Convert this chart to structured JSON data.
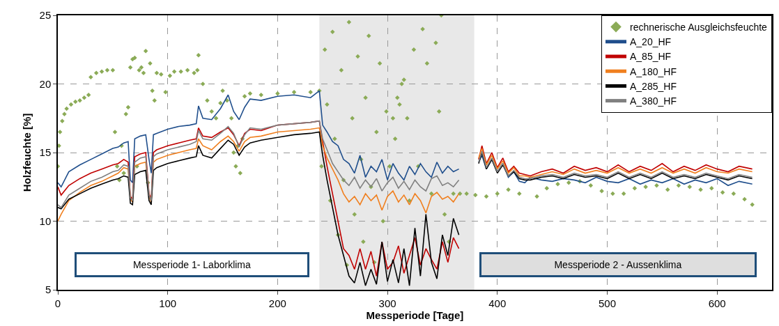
{
  "chart_data": {
    "type": "line",
    "xlabel": "Messperiode [Tage]",
    "ylabel": "Holzfeuchte [%]",
    "xlim": [
      0,
      650
    ],
    "xticks": [
      0,
      100,
      200,
      300,
      400,
      500,
      600
    ],
    "ylim": [
      5,
      25
    ],
    "yticks": [
      5,
      10,
      15,
      20,
      25
    ],
    "grid": true,
    "legend": "top right",
    "line_style": "solid",
    "x": [
      0,
      3,
      10,
      20,
      30,
      40,
      50,
      55,
      60,
      64,
      66,
      68,
      70,
      75,
      80,
      83,
      85,
      87,
      90,
      100,
      110,
      120,
      126,
      128,
      132,
      140,
      148,
      155,
      160,
      165,
      170,
      175,
      185,
      200,
      215,
      230,
      238,
      241,
      245,
      250,
      255,
      260,
      265,
      270,
      275,
      280,
      285,
      290,
      295,
      300,
      305,
      310,
      315,
      320,
      325,
      330,
      335,
      340,
      345,
      350,
      355,
      360,
      365,
      374,
      383,
      386,
      390,
      395,
      400,
      405,
      410,
      415,
      420,
      425,
      430,
      440,
      450,
      460,
      470,
      480,
      490,
      500,
      510,
      520,
      530,
      540,
      550,
      560,
      570,
      580,
      590,
      600,
      610,
      620,
      632
    ],
    "series": [
      {
        "name": "rechnerische Ausgleichsfeuchte",
        "type": "scatter",
        "marker": "diamond",
        "color": "#8bab57",
        "x": [
          0,
          1,
          2,
          4,
          6,
          8,
          12,
          16,
          20,
          24,
          28,
          30,
          35,
          40,
          45,
          50,
          52,
          54,
          56,
          58,
          60,
          62,
          64,
          66,
          68,
          70,
          72,
          74,
          76,
          78,
          80,
          82,
          84,
          86,
          88,
          90,
          94,
          98,
          102,
          106,
          112,
          118,
          124,
          127,
          128,
          132,
          136,
          140,
          144,
          148,
          150,
          154,
          158,
          160,
          162,
          164,
          166,
          168,
          170,
          175,
          185,
          200,
          215,
          230,
          238,
          240,
          243,
          245,
          248,
          250,
          252,
          255,
          258,
          260,
          263,
          265,
          268,
          270,
          273,
          276,
          278,
          280,
          283,
          285,
          288,
          290,
          293,
          296,
          299,
          302,
          305,
          307,
          309,
          311,
          313,
          315,
          318,
          320,
          324,
          328,
          332,
          336,
          340,
          344,
          347,
          349,
          352,
          356,
          360,
          366,
          372,
          380,
          390,
          400,
          410,
          420,
          436,
          445,
          455,
          465,
          475,
          485,
          495,
          505,
          515,
          525,
          535,
          545,
          555,
          565,
          575,
          585,
          595,
          605,
          615,
          625,
          632
        ],
        "values": [
          14.0,
          15.5,
          16.5,
          17.3,
          17.8,
          18.2,
          18.5,
          18.7,
          18.8,
          19.0,
          19.2,
          20.5,
          20.8,
          20.9,
          21.0,
          21.0,
          16.5,
          14.0,
          13.0,
          15.5,
          13.5,
          17.8,
          18.3,
          21.2,
          21.8,
          21.9,
          14.0,
          21.0,
          21.2,
          20.8,
          22.4,
          12.8,
          21.5,
          19.5,
          18.8,
          20.8,
          20.7,
          19.4,
          20.6,
          20.9,
          20.9,
          21.0,
          20.8,
          21.0,
          22.1,
          20.0,
          18.8,
          18.0,
          17.5,
          18.6,
          19.5,
          18.8,
          17.5,
          15.0,
          14.0,
          15.5,
          13.5,
          16.0,
          19.1,
          19.3,
          19.2,
          19.3,
          19.4,
          19.4,
          19.5,
          14.0,
          22.5,
          18.5,
          11.5,
          23.8,
          16.0,
          9.0,
          21.0,
          13.0,
          6.8,
          24.5,
          17.5,
          10.5,
          22.0,
          14.5,
          8.5,
          19.0,
          23.5,
          12.5,
          7.0,
          16.5,
          21.5,
          10.0,
          18.0,
          14.0,
          17.5,
          16.0,
          19.0,
          18.5,
          20.0,
          20.3,
          17.5,
          11.5,
          22.5,
          14.0,
          24.0,
          21.5,
          12.0,
          23.0,
          18.0,
          25.0,
          10.5,
          8.5,
          12.0,
          12.0,
          12.0,
          11.9,
          11.8,
          12.0,
          12.3,
          12.0,
          11.8,
          12.4,
          12.7,
          12.8,
          12.9,
          12.6,
          12.2,
          12.0,
          12.0,
          12.4,
          12.5,
          12.6,
          12.3,
          12.6,
          12.5,
          12.3,
          12.4,
          12.1,
          12.0,
          11.6,
          11.2
        ]
      },
      {
        "name": "A_20_HF",
        "color": "#1f4e8c",
        "values": [
          12.8,
          12.5,
          13.6,
          14.1,
          14.5,
          14.9,
          15.3,
          15.4,
          15.7,
          15.8,
          13.0,
          12.8,
          16.0,
          16.2,
          16.3,
          14.5,
          13.5,
          16.3,
          16.4,
          16.7,
          16.9,
          17.0,
          17.1,
          18.4,
          17.5,
          17.4,
          18.2,
          19.2,
          18.0,
          17.4,
          18.3,
          18.9,
          18.8,
          19.1,
          19.2,
          19.0,
          19.5,
          17.0,
          16.5,
          15.8,
          15.5,
          14.5,
          14.2,
          13.5,
          14.8,
          13.2,
          14.0,
          13.6,
          14.5,
          13.0,
          14.2,
          13.5,
          13.0,
          14.0,
          13.4,
          14.2,
          13.6,
          13.2,
          14.3,
          13.5,
          14.0,
          13.6,
          13.8,
          null,
          14.3,
          14.8,
          13.8,
          14.5,
          13.6,
          14.2,
          13.2,
          13.6,
          12.9,
          12.8,
          13.2,
          13.0,
          12.9,
          13.1,
          13.0,
          12.8,
          13.2,
          12.9,
          12.8,
          13.1,
          12.7,
          13.0,
          12.8,
          13.1,
          12.7,
          13.0,
          12.8,
          13.1,
          12.6,
          12.9,
          12.7
        ]
      },
      {
        "name": "A_85_HF",
        "color": "#c00000",
        "values": [
          12.5,
          11.9,
          12.6,
          13.1,
          13.5,
          13.8,
          14.1,
          14.2,
          14.5,
          14.3,
          11.8,
          11.6,
          14.7,
          14.9,
          15.0,
          12.0,
          11.6,
          15.0,
          15.2,
          15.5,
          15.7,
          15.9,
          16.0,
          16.8,
          16.2,
          16.1,
          16.5,
          16.8,
          16.3,
          15.5,
          16.4,
          16.7,
          16.6,
          17.0,
          17.1,
          17.2,
          17.3,
          15.8,
          14.0,
          12.0,
          10.0,
          8.0,
          7.5,
          6.5,
          8.0,
          6.5,
          7.8,
          6.0,
          8.5,
          6.5,
          7.0,
          8.2,
          6.2,
          7.5,
          8.8,
          6.8,
          8.0,
          7.2,
          6.5,
          8.5,
          7.0,
          8.8,
          8.0,
          null,
          14.5,
          15.5,
          14.2,
          15.0,
          13.9,
          14.6,
          13.6,
          14.0,
          13.5,
          13.4,
          13.3,
          13.6,
          13.8,
          13.5,
          14.0,
          13.7,
          13.9,
          13.6,
          14.1,
          13.6,
          14.0,
          13.7,
          14.2,
          13.6,
          14.0,
          13.7,
          14.1,
          13.8,
          13.6,
          14.0,
          13.8
        ]
      },
      {
        "name": "A_180_HF",
        "color": "#f07f1e",
        "values": [
          10.0,
          10.5,
          11.5,
          12.1,
          12.6,
          12.9,
          13.3,
          13.5,
          13.9,
          13.8,
          11.6,
          11.4,
          14.0,
          14.2,
          14.3,
          11.8,
          11.4,
          14.3,
          14.5,
          14.8,
          15.0,
          15.2,
          15.3,
          16.0,
          15.5,
          15.2,
          15.8,
          16.2,
          15.8,
          15.1,
          15.8,
          16.1,
          16.2,
          16.5,
          16.6,
          16.7,
          16.8,
          15.5,
          14.6,
          13.8,
          13.0,
          12.0,
          11.4,
          11.8,
          11.2,
          12.0,
          11.5,
          11.9,
          10.8,
          11.8,
          12.2,
          11.4,
          11.9,
          11.2,
          12.0,
          11.5,
          10.6,
          11.8,
          12.1,
          11.6,
          11.8,
          11.4,
          12.0,
          null,
          14.6,
          15.3,
          14.1,
          14.8,
          13.8,
          14.4,
          13.5,
          13.9,
          13.3,
          13.3,
          13.2,
          13.4,
          13.6,
          13.4,
          13.8,
          13.5,
          13.7,
          13.5,
          13.9,
          13.5,
          13.8,
          13.5,
          13.9,
          13.5,
          13.8,
          13.5,
          13.9,
          13.6,
          13.5,
          13.8,
          13.6
        ]
      },
      {
        "name": "A_285_HF",
        "color": "#000000",
        "values": [
          11.0,
          10.9,
          11.6,
          12.0,
          12.4,
          12.7,
          13.0,
          13.1,
          13.3,
          13.2,
          11.3,
          11.2,
          13.4,
          13.6,
          13.7,
          11.5,
          11.2,
          13.7,
          13.9,
          14.2,
          14.4,
          14.6,
          14.7,
          15.5,
          14.8,
          14.6,
          15.3,
          15.9,
          15.6,
          14.8,
          15.4,
          15.7,
          15.9,
          16.1,
          16.3,
          16.4,
          16.5,
          14.8,
          13.0,
          11.0,
          9.0,
          7.5,
          6.0,
          5.5,
          7.0,
          5.3,
          6.5,
          5.4,
          8.5,
          5.6,
          7.2,
          5.5,
          8.0,
          5.3,
          9.5,
          6.0,
          10.5,
          7.0,
          5.8,
          9.0,
          7.5,
          10.2,
          9.0,
          null,
          14.2,
          15.0,
          13.8,
          14.5,
          13.5,
          14.1,
          13.3,
          13.6,
          13.1,
          13.0,
          13.0,
          13.2,
          13.3,
          13.1,
          13.4,
          13.2,
          13.3,
          13.1,
          13.5,
          13.1,
          13.4,
          13.1,
          13.5,
          13.1,
          13.3,
          13.1,
          13.4,
          13.2,
          13.0,
          13.3,
          13.1
        ]
      },
      {
        "name": "A_380_HF",
        "color": "#808080",
        "values": [
          11.2,
          11.0,
          11.9,
          12.4,
          12.9,
          13.2,
          13.6,
          13.7,
          14.1,
          14.0,
          11.7,
          11.5,
          14.3,
          14.6,
          14.7,
          11.9,
          11.5,
          14.7,
          14.9,
          15.2,
          15.4,
          15.6,
          15.8,
          16.6,
          16.0,
          15.9,
          16.4,
          16.9,
          16.4,
          15.4,
          16.3,
          16.8,
          16.7,
          17.0,
          17.1,
          17.2,
          17.3,
          16.0,
          15.2,
          14.2,
          13.6,
          13.0,
          12.6,
          13.2,
          12.4,
          13.0,
          12.5,
          13.1,
          12.2,
          12.8,
          13.2,
          12.4,
          12.9,
          12.3,
          13.0,
          12.5,
          12.2,
          13.1,
          13.3,
          12.6,
          12.8,
          12.5,
          13.0,
          null,
          14.3,
          15.1,
          13.9,
          14.6,
          13.6,
          14.2,
          13.3,
          13.7,
          13.2,
          13.1,
          13.1,
          13.3,
          13.4,
          13.2,
          13.5,
          13.3,
          13.4,
          13.2,
          13.6,
          13.2,
          13.5,
          13.2,
          13.6,
          13.2,
          13.4,
          13.2,
          13.5,
          13.3,
          13.1,
          13.4,
          13.2
        ]
      }
    ],
    "bands": [
      {
        "axis": "x",
        "from": 238,
        "to": 379,
        "color": "#d9d9d9"
      }
    ],
    "annotations": [
      "Messperiode 1- Laborklima",
      "Messperiode 2 - Aussenklima"
    ]
  }
}
